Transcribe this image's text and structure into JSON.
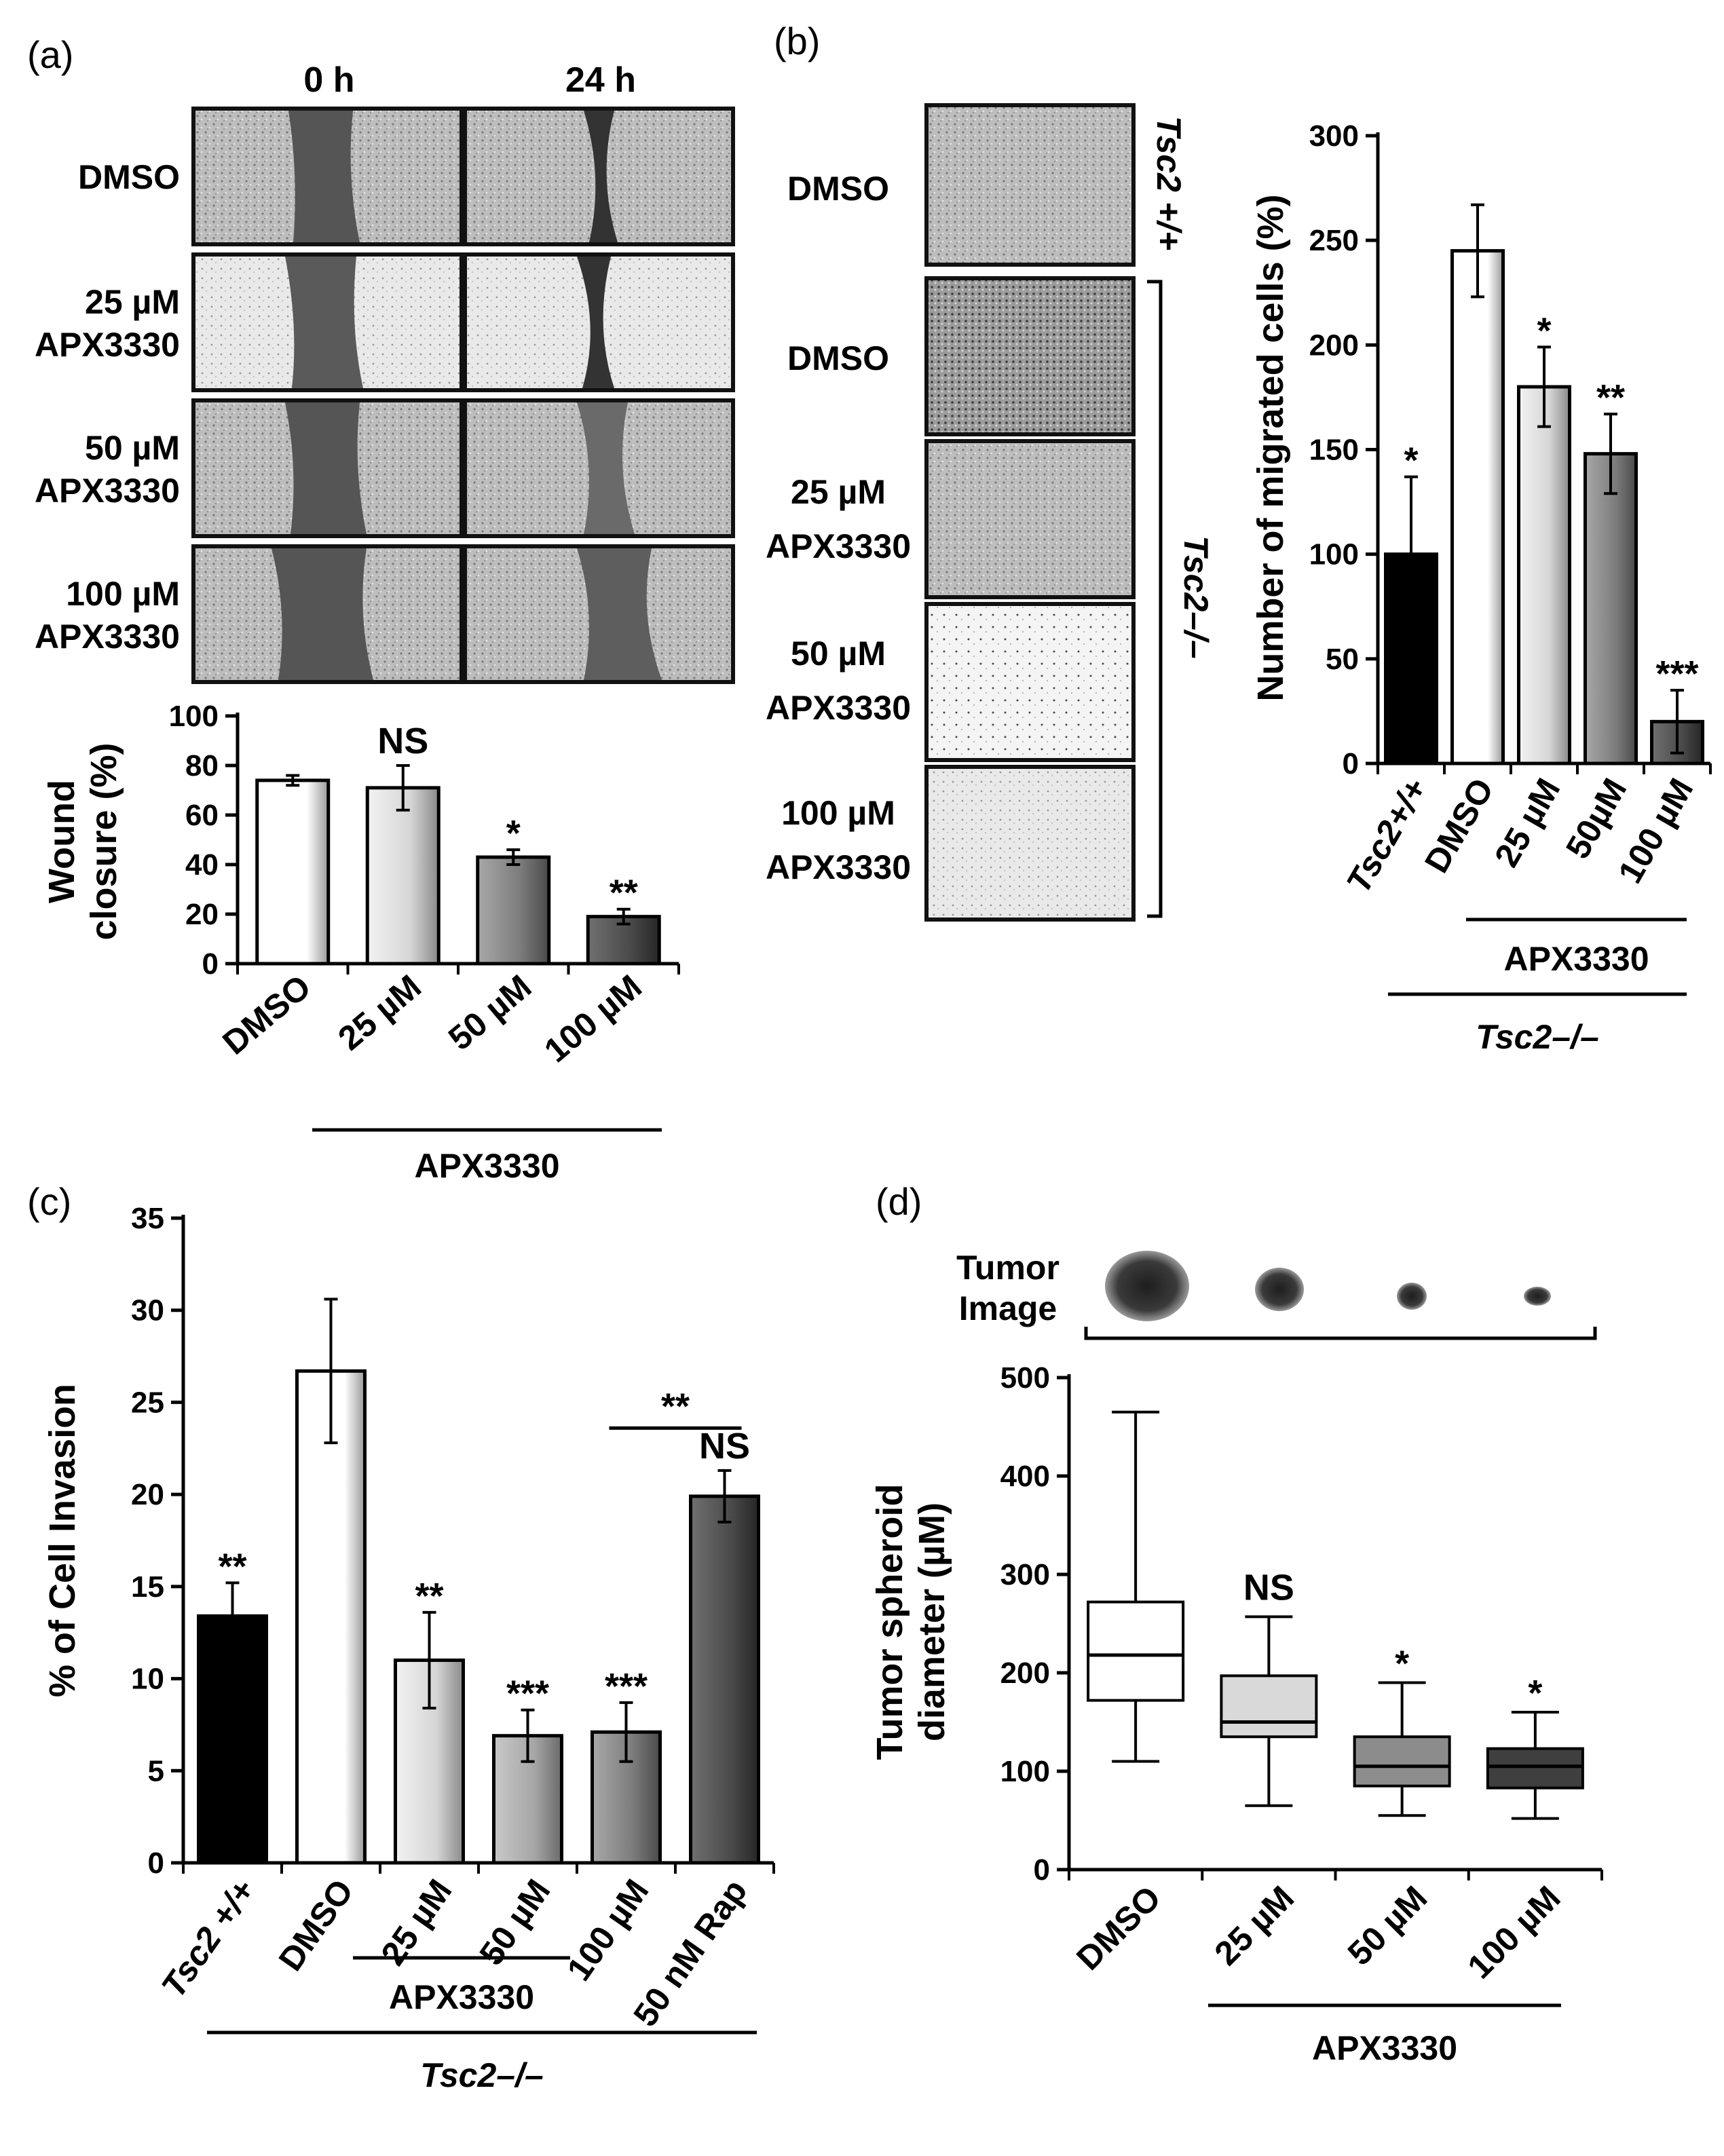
{
  "panels": {
    "a": {
      "label": "(a)",
      "col_headers": [
        "0 h",
        "24 h"
      ],
      "row_labels": [
        [
          "DMSO"
        ],
        [
          "25 µM",
          "APX3330"
        ],
        [
          "50 µM",
          "APX3330"
        ],
        [
          "100 µM",
          "APX3330"
        ]
      ]
    },
    "b": {
      "label": "(b)",
      "row_labels": [
        [
          "DMSO"
        ],
        [
          "DMSO"
        ],
        [
          "25 µM",
          "APX3330"
        ],
        [
          "50 µM",
          "APX3330"
        ],
        [
          "100 µM",
          "APX3330"
        ]
      ],
      "side_labels": [
        "Tsc2 +/+",
        "Tsc2–/–"
      ]
    },
    "c": {
      "label": "(c)"
    },
    "d": {
      "label": "(d)",
      "tumor_image_label": [
        "Tumor",
        "Image"
      ]
    }
  },
  "chart_data": [
    {
      "id": "a",
      "type": "bar",
      "ylabel": [
        "Wound",
        "closure (%)"
      ],
      "ylim": [
        0,
        100
      ],
      "yticks": [
        0,
        20,
        40,
        60,
        80,
        100
      ],
      "categories": [
        "DMSO",
        "25 µM",
        "50 µM",
        "100 µM"
      ],
      "values": [
        74,
        71,
        43,
        19
      ],
      "errors": [
        2,
        9,
        3,
        3
      ],
      "annotations": [
        "",
        "NS",
        "*",
        "**"
      ],
      "colors": [
        "#ffffff",
        "#d9d9d9",
        "#8c8c8c",
        "#3f3f3f"
      ],
      "group_label": "APX3330"
    },
    {
      "id": "b",
      "type": "bar",
      "ylabel": "Number of migrated cells (%)",
      "ylim": [
        0,
        300
      ],
      "yticks": [
        0,
        50,
        100,
        150,
        200,
        250,
        300
      ],
      "categories": [
        "Tsc2+/+",
        "DMSO",
        "25 µM",
        "50µM",
        "100 µM"
      ],
      "values": [
        100,
        245,
        180,
        148,
        20
      ],
      "errors": [
        37,
        22,
        19,
        19,
        15
      ],
      "annotations": [
        "*",
        "",
        "*",
        "**",
        "***"
      ],
      "colors": [
        "#000000",
        "#ffffff",
        "#d9d9d9",
        "#8c8c8c",
        "#3f3f3f"
      ],
      "group_label": "APX3330",
      "outer_group_label": "Tsc2–/–"
    },
    {
      "id": "c",
      "type": "bar",
      "ylabel": "% of Cell Invasion",
      "ylim": [
        0,
        35
      ],
      "yticks": [
        0,
        5,
        10,
        15,
        20,
        25,
        30,
        35
      ],
      "categories": [
        "Tsc2 +/+",
        "DMSO",
        "25 µM",
        "50 µM",
        "100 µM",
        "50 nM Rap"
      ],
      "values": [
        13.4,
        26.7,
        11.0,
        6.9,
        7.1,
        19.9
      ],
      "errors": [
        1.8,
        3.9,
        2.6,
        1.4,
        1.6,
        1.4
      ],
      "annotations": [
        "**",
        "",
        "**",
        "***",
        "***",
        "NS"
      ],
      "colors": [
        "#000000",
        "#ffffff",
        "#d9d9d9",
        "#b3b3b3",
        "#7f7f7f",
        "#404040"
      ],
      "group_label": "APX3330",
      "outer_group_label": "Tsc2–/–",
      "bracket_label": "**"
    },
    {
      "id": "d",
      "type": "box",
      "ylabel": [
        "Tumor spheroid",
        "diameter (µM)"
      ],
      "ylim": [
        0,
        500
      ],
      "yticks": [
        0,
        100,
        200,
        300,
        400,
        500
      ],
      "categories": [
        "DMSO",
        "25 µM",
        "50 µM",
        "100 µM"
      ],
      "boxes": [
        {
          "min": 110,
          "q1": 172,
          "median": 218,
          "q3": 272,
          "max": 465
        },
        {
          "min": 65,
          "q1": 135,
          "median": 150,
          "q3": 197,
          "max": 257
        },
        {
          "min": 55,
          "q1": 85,
          "median": 105,
          "q3": 135,
          "max": 190
        },
        {
          "min": 52,
          "q1": 83,
          "median": 105,
          "q3": 123,
          "max": 160
        }
      ],
      "annotations": [
        "",
        "NS",
        "*",
        "*"
      ],
      "colors": [
        "#ffffff",
        "#d9d9d9",
        "#8c8c8c",
        "#3f3f3f"
      ],
      "group_label": "APX3330"
    }
  ]
}
